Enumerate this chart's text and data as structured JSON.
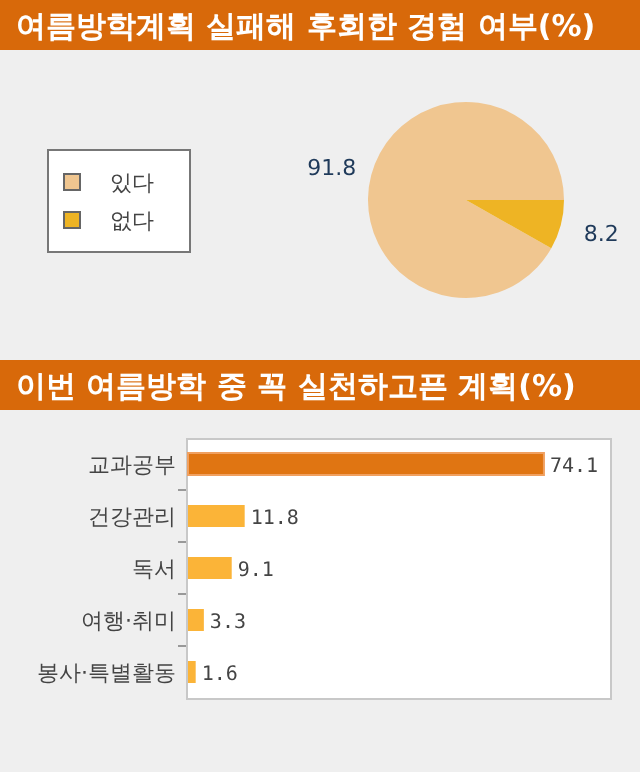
{
  "chart_data": [
    {
      "type": "pie",
      "title": "여름방학계획 실패해 후회한 경험 여부(%)",
      "categories": [
        "있다",
        "없다"
      ],
      "values": [
        91.8,
        8.2
      ],
      "colors": [
        "#f0c690",
        "#eeb424"
      ],
      "data_labels": true,
      "legend": "left"
    },
    {
      "type": "bar",
      "title": "이번 여름방학 중 꼭 실천하고픈 계획(%)",
      "orientation": "horizontal",
      "categories": [
        "교과공부",
        "건강관리",
        "독서",
        "여행·취미",
        "봉사·특별활동"
      ],
      "values": [
        74.1,
        11.8,
        9.1,
        3.3,
        1.6
      ],
      "colors": [
        "#e07512",
        "#fbb438",
        "#fbb438",
        "#fbb438",
        "#fbb438"
      ],
      "data_labels": true
    }
  ]
}
